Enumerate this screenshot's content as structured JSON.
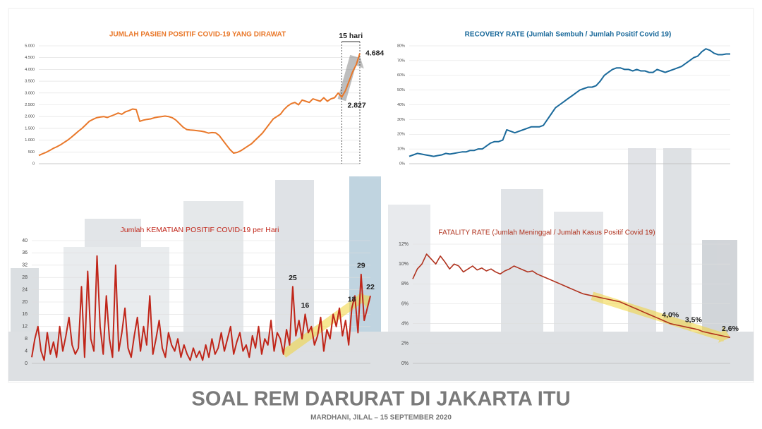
{
  "title": "SOAL REM DARURAT DI JAKARTA ITU",
  "subtitle": "MARDHANI, JILAL – 15 SEPTEMBER 2020",
  "chart_data": [
    {
      "type": "line",
      "title": "JUMLAH PASIEN POSITIF COVID-19 YANG DIRAWAT",
      "color": "#e9782a",
      "annotation": "15 hari",
      "values": [
        350,
        420,
        480,
        560,
        650,
        720,
        800,
        900,
        1000,
        1120,
        1250,
        1380,
        1500,
        1650,
        1800,
        1880,
        1950,
        1980,
        2000,
        1960,
        2020,
        2080,
        2150,
        2100,
        2200,
        2250,
        2320,
        2300,
        1800,
        1850,
        1880,
        1900,
        1950,
        1980,
        2000,
        2020,
        2000,
        1950,
        1850,
        1700,
        1550,
        1450,
        1430,
        1420,
        1400,
        1380,
        1350,
        1300,
        1320,
        1310,
        1200,
        1000,
        800,
        600,
        450,
        480,
        550,
        650,
        750,
        850,
        1000,
        1150,
        1300,
        1500,
        1700,
        1900,
        2000,
        2100,
        2300,
        2450,
        2550,
        2600,
        2500,
        2700,
        2650,
        2600,
        2750,
        2700,
        2650,
        2800,
        2650,
        2750,
        2800,
        3000,
        2827,
        3100,
        3500,
        3900,
        4200,
        4684
      ],
      "value_labels": [
        null,
        null,
        null,
        null,
        null,
        null,
        null,
        null,
        null,
        null,
        null,
        null,
        null,
        null,
        null,
        null,
        null,
        null,
        null,
        null,
        null,
        null,
        null,
        null,
        null,
        null,
        null,
        null,
        null,
        null,
        null,
        null,
        null,
        null,
        null,
        null,
        null,
        null,
        null,
        null,
        null,
        null,
        null,
        null,
        null,
        null,
        null,
        null,
        null,
        null,
        null,
        null,
        null,
        null,
        null,
        null,
        null,
        null,
        null,
        null,
        null,
        null,
        null,
        null,
        null,
        null,
        null,
        null,
        null,
        null,
        null,
        null,
        null,
        null,
        null,
        null,
        null,
        null,
        null,
        null,
        null,
        null,
        null,
        null,
        "2.827",
        null,
        null,
        null,
        null,
        "4.684"
      ],
      "ylim": [
        0,
        5000
      ],
      "yticks": [
        0,
        500,
        {
          "value": 1000,
          "label": "1.000"
        },
        {
          "value": 1500,
          "label": "1.500"
        },
        {
          "value": 2000,
          "label": "2.000"
        },
        {
          "value": 2500,
          "label": "2.500"
        },
        {
          "value": 3000,
          "label": "3.000"
        },
        {
          "value": 3500,
          "label": "3.500"
        },
        {
          "value": 4000,
          "label": "4.000"
        },
        {
          "value": 4500,
          "label": "4.500"
        },
        {
          "value": 5000,
          "label": "5.000"
        }
      ],
      "grid": true
    },
    {
      "type": "line",
      "title": "RECOVERY RATE (Jumlah Sembuh / Jumlah Positif Covid 19)",
      "color": "#1b6a9b",
      "values": [
        5,
        6,
        7,
        6.5,
        6,
        5.5,
        5,
        5.5,
        6,
        7,
        6.5,
        7,
        7.5,
        8,
        8,
        9,
        9,
        10,
        10,
        12,
        14,
        15,
        15,
        16,
        23,
        22,
        21,
        22,
        23,
        24,
        25,
        25,
        25,
        26,
        30,
        34,
        38,
        40,
        42,
        44,
        46,
        48,
        50,
        51,
        52,
        52,
        53,
        56,
        60,
        62,
        64,
        65,
        65,
        64,
        64,
        63,
        64,
        63,
        63,
        62,
        62,
        64,
        63,
        62,
        63,
        64,
        65,
        66,
        68,
        70,
        72,
        73,
        76,
        78,
        77,
        75,
        74,
        74,
        74.5,
        74.5
      ],
      "ylim": [
        0,
        80
      ],
      "yticks": [
        {
          "value": 0,
          "label": "0%"
        },
        {
          "value": 10,
          "label": "10%"
        },
        {
          "value": 20,
          "label": "20%"
        },
        {
          "value": 30,
          "label": "30%"
        },
        {
          "value": 40,
          "label": "40%"
        },
        {
          "value": 50,
          "label": "50%"
        },
        {
          "value": 60,
          "label": "60%"
        },
        {
          "value": 70,
          "label": "70%"
        },
        {
          "value": 80,
          "label": "80%"
        }
      ],
      "grid": true
    },
    {
      "type": "line",
      "title": "Jumlah KEMATIAN POSITIF COVID-19 per Hari",
      "color": "#c0261a",
      "values": [
        2,
        8,
        12,
        4,
        1,
        10,
        3,
        7,
        2,
        12,
        4,
        9,
        15,
        6,
        3,
        5,
        25,
        2,
        30,
        8,
        4,
        35,
        12,
        3,
        22,
        8,
        2,
        32,
        4,
        10,
        18,
        5,
        2,
        9,
        15,
        4,
        12,
        6,
        22,
        3,
        8,
        14,
        5,
        2,
        10,
        6,
        4,
        8,
        2,
        6,
        3,
        1,
        5,
        2,
        4,
        1,
        6,
        2,
        8,
        3,
        5,
        10,
        4,
        8,
        12,
        3,
        7,
        10,
        4,
        6,
        2,
        9,
        5,
        12,
        3,
        8,
        6,
        14,
        4,
        10,
        8,
        3,
        11,
        6,
        25,
        9,
        14,
        8,
        16,
        10,
        12,
        6,
        9,
        15,
        4,
        11,
        8,
        16,
        12,
        18,
        9,
        14,
        6,
        18,
        22,
        10,
        29,
        14,
        18,
        22
      ],
      "value_labels": [
        null,
        null,
        null,
        null,
        null,
        null,
        null,
        null,
        null,
        null,
        null,
        null,
        null,
        null,
        null,
        null,
        null,
        null,
        null,
        null,
        null,
        null,
        null,
        null,
        null,
        null,
        null,
        null,
        null,
        null,
        null,
        null,
        null,
        null,
        null,
        null,
        null,
        null,
        null,
        null,
        null,
        null,
        null,
        null,
        null,
        null,
        null,
        null,
        null,
        null,
        null,
        null,
        null,
        null,
        null,
        null,
        null,
        null,
        null,
        null,
        null,
        null,
        null,
        null,
        null,
        null,
        null,
        null,
        null,
        null,
        null,
        null,
        null,
        null,
        null,
        null,
        null,
        null,
        null,
        null,
        null,
        null,
        null,
        null,
        "25",
        null,
        null,
        null,
        "16",
        null,
        null,
        null,
        null,
        null,
        null,
        null,
        null,
        null,
        null,
        null,
        null,
        null,
        null,
        "18",
        null,
        null,
        "29",
        null,
        null,
        "22"
      ],
      "ylim": [
        0,
        40
      ],
      "yticks": [
        0,
        4,
        8,
        12,
        16,
        20,
        24,
        28,
        32,
        36,
        40
      ],
      "grid": true
    },
    {
      "type": "line",
      "title": "FATALITY RATE (Jumlah Meninggal / Jumlah Kasus Positif Covid 19)",
      "color": "#b0321e",
      "values": [
        8.5,
        9.5,
        10,
        11,
        10.5,
        10,
        10.8,
        10.2,
        9.5,
        10,
        9.8,
        9.2,
        9.5,
        9.8,
        9.4,
        9.6,
        9.3,
        9.5,
        9.2,
        9,
        9.3,
        9.5,
        9.8,
        9.6,
        9.4,
        9.2,
        9.3,
        9,
        8.8,
        8.6,
        8.4,
        8.2,
        8,
        7.8,
        7.6,
        7.4,
        7.2,
        7,
        6.9,
        6.8,
        6.7,
        6.6,
        6.5,
        6.4,
        6.3,
        6.2,
        6,
        5.8,
        5.6,
        5.4,
        5.2,
        5,
        4.8,
        4.6,
        4.4,
        4.2,
        4,
        3.9,
        3.8,
        3.7,
        3.6,
        3.5,
        3.4,
        3.2,
        3.1,
        3,
        2.9,
        2.8,
        2.7,
        2.6
      ],
      "value_labels": [
        null,
        null,
        null,
        null,
        null,
        null,
        null,
        null,
        null,
        null,
        null,
        null,
        null,
        null,
        null,
        null,
        null,
        null,
        null,
        null,
        null,
        null,
        null,
        null,
        null,
        null,
        null,
        null,
        null,
        null,
        null,
        null,
        null,
        null,
        null,
        null,
        null,
        null,
        null,
        null,
        null,
        null,
        null,
        null,
        null,
        null,
        null,
        null,
        null,
        null,
        null,
        null,
        null,
        null,
        null,
        null,
        "4,0%",
        null,
        null,
        null,
        null,
        "3,5%",
        null,
        null,
        null,
        null,
        null,
        null,
        null,
        "2,6%"
      ],
      "ylim": [
        0,
        12
      ],
      "yticks": [
        {
          "value": 0,
          "label": "0%"
        },
        {
          "value": 2,
          "label": "2%"
        },
        {
          "value": 4,
          "label": "4%"
        },
        {
          "value": 6,
          "label": "6%"
        },
        {
          "value": 8,
          "label": "8%"
        },
        {
          "value": 10,
          "label": "10%"
        },
        {
          "value": 12,
          "label": "12%"
        }
      ],
      "grid": true
    }
  ]
}
